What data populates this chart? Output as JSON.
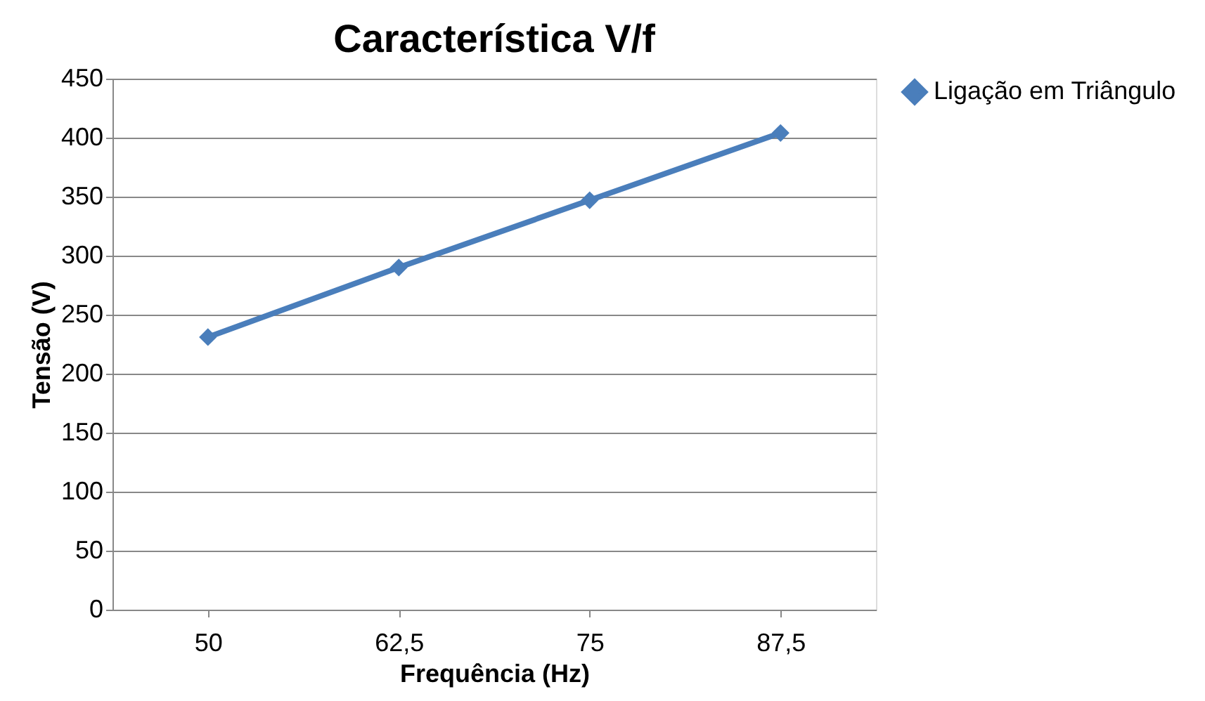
{
  "chart_data": {
    "type": "line",
    "title": "Característica V/f",
    "xlabel": "Frequência (Hz)",
    "ylabel": "Tensão (V)",
    "categories": [
      "50",
      "62,5",
      "75",
      "87,5"
    ],
    "series": [
      {
        "name": "Ligação em Triângulo",
        "color": "#4a7ebb",
        "values": [
          231,
          290,
          347,
          404
        ]
      }
    ],
    "ylim": [
      0,
      450
    ],
    "yticks": [
      0,
      50,
      100,
      150,
      200,
      250,
      300,
      350,
      400,
      450
    ],
    "grid": "y",
    "legend": "right",
    "marker": "diamond",
    "line_style": "solid"
  }
}
